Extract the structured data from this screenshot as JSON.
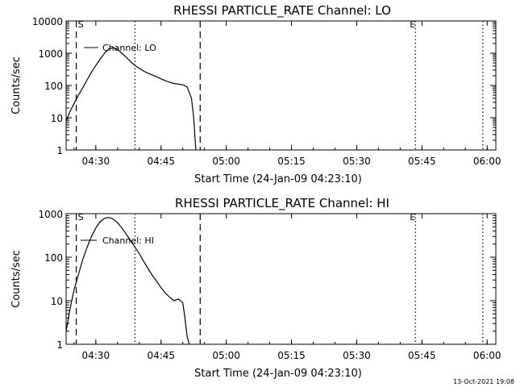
{
  "footer_stamp": "13-Oct-2021 19:08",
  "chart_data": [
    {
      "type": "line",
      "title": "RHESSI PARTICLE_RATE Channel: LO",
      "xlabel": "Start Time (24-Jan-09 04:23:10)",
      "ylabel": "Counts/sec",
      "yscale": "log",
      "xlim": [
        "04:23:10",
        "06:02:00"
      ],
      "ylim": [
        1,
        10000
      ],
      "xticks": [
        "04:30",
        "04:45",
        "05:00",
        "05:15",
        "05:30",
        "05:45",
        "06:00"
      ],
      "yticks": [
        "1",
        "10",
        "100",
        "1000",
        "10000"
      ],
      "legend": "Channel: LO",
      "markers": [
        {
          "label": "S",
          "at": "04:25:30"
        },
        {
          "label": "E",
          "at": "05:43:30"
        }
      ],
      "vlines": [
        {
          "style": "dashed",
          "at": "04:25:30"
        },
        {
          "style": "dotted",
          "at": "04:39:00"
        },
        {
          "style": "dashed",
          "at": "04:54:00"
        },
        {
          "style": "dotted",
          "at": "05:43:30"
        },
        {
          "style": "dotted",
          "at": "05:59:00"
        }
      ],
      "series": [
        {
          "x": [
            "04:23:10",
            "04:24:00",
            "04:25:00",
            "04:26:00",
            "04:27:00",
            "04:28:00",
            "04:29:00",
            "04:30:00",
            "04:31:00",
            "04:32:00",
            "04:33:00",
            "04:34:00",
            "04:35:00",
            "04:36:00",
            "04:37:00",
            "04:38:00",
            "04:39:00",
            "04:40:00",
            "04:41:00",
            "04:42:00",
            "04:43:00",
            "04:44:00",
            "04:45:00",
            "04:46:00",
            "04:47:00",
            "04:48:00",
            "04:49:00",
            "04:50:00",
            "04:51:00",
            "04:52:00",
            "04:52:30",
            "04:53:00"
          ],
          "values": [
            8,
            15,
            28,
            50,
            85,
            150,
            260,
            420,
            650,
            1000,
            1350,
            1500,
            1300,
            1000,
            750,
            550,
            420,
            340,
            280,
            240,
            210,
            185,
            160,
            140,
            125,
            115,
            110,
            105,
            90,
            40,
            10,
            1
          ]
        }
      ]
    },
    {
      "type": "line",
      "title": "RHESSI PARTICLE_RATE Channel: HI",
      "xlabel": "Start Time (24-Jan-09 04:23:10)",
      "ylabel": "Counts/sec",
      "yscale": "log",
      "xlim": [
        "04:23:10",
        "06:02:00"
      ],
      "ylim": [
        1,
        1000
      ],
      "xticks": [
        "04:30",
        "04:45",
        "05:00",
        "05:15",
        "05:30",
        "05:45",
        "06:00"
      ],
      "yticks": [
        "1",
        "10",
        "100",
        "1000"
      ],
      "legend": "Channel: HI",
      "markers": [
        {
          "label": "S",
          "at": "04:25:30"
        },
        {
          "label": "E",
          "at": "05:43:30"
        }
      ],
      "vlines": [
        {
          "style": "dashed",
          "at": "04:25:30"
        },
        {
          "style": "dotted",
          "at": "04:39:00"
        },
        {
          "style": "dashed",
          "at": "04:54:00"
        },
        {
          "style": "dotted",
          "at": "05:43:30"
        },
        {
          "style": "dotted",
          "at": "05:59:00"
        }
      ],
      "series": [
        {
          "x": [
            "04:23:10",
            "04:24:00",
            "04:25:00",
            "04:26:00",
            "04:27:00",
            "04:28:00",
            "04:29:00",
            "04:30:00",
            "04:31:00",
            "04:32:00",
            "04:33:00",
            "04:34:00",
            "04:35:00",
            "04:36:00",
            "04:37:00",
            "04:38:00",
            "04:39:00",
            "04:40:00",
            "04:41:00",
            "04:42:00",
            "04:43:00",
            "04:44:00",
            "04:45:00",
            "04:46:00",
            "04:47:00",
            "04:48:00",
            "04:49:00",
            "04:50:00",
            "04:50:30",
            "04:51:00",
            "04:51:30"
          ],
          "values": [
            2,
            6,
            18,
            40,
            90,
            170,
            300,
            470,
            650,
            780,
            820,
            750,
            620,
            470,
            340,
            240,
            170,
            120,
            80,
            55,
            38,
            28,
            20,
            15,
            12,
            10,
            11,
            9,
            4,
            1.5,
            1
          ]
        }
      ]
    }
  ]
}
